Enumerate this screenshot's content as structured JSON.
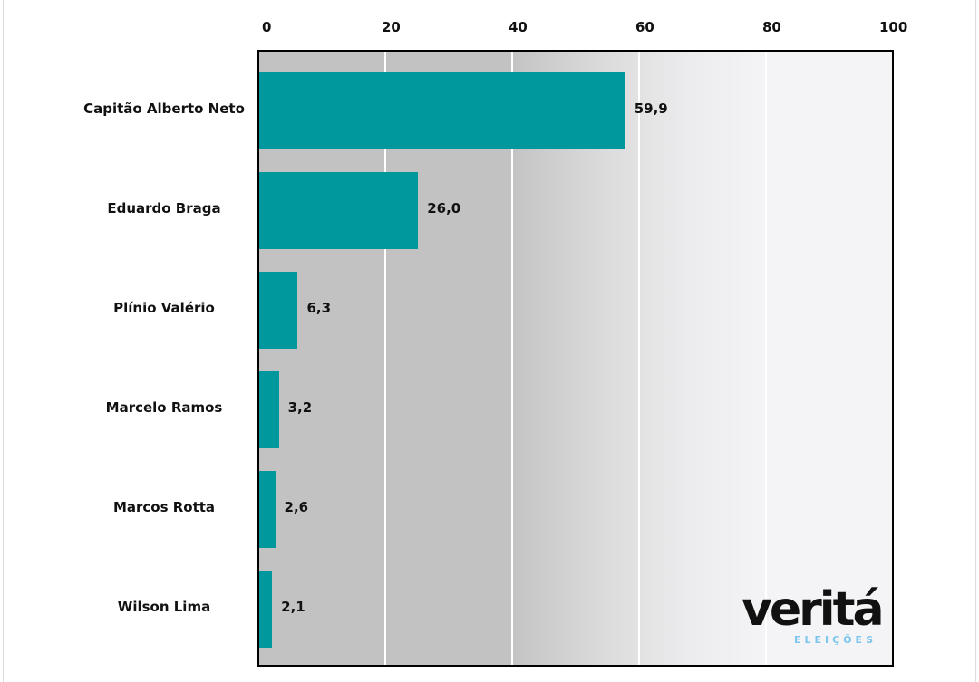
{
  "chart_data": {
    "type": "bar",
    "orientation": "horizontal",
    "categories": [
      "Capitão Alberto Neto",
      "Eduardo Braga",
      "Plínio Valério",
      "Marcelo Ramos",
      "Marcos Rotta",
      "Wilson Lima"
    ],
    "values": [
      59.9,
      26.0,
      6.3,
      3.2,
      2.6,
      2.1
    ],
    "value_labels": [
      "59,9",
      "26,0",
      "6,3",
      "3,2",
      "2,6",
      "2,1"
    ],
    "xticks": [
      "0",
      "20",
      "40",
      "60",
      "80",
      "100"
    ],
    "xlim": [
      0,
      100
    ],
    "xaxis_position": "top",
    "grid": true,
    "bar_color": "#00979d",
    "title": "",
    "xlabel": "",
    "ylabel": ""
  },
  "logo": {
    "name": "veritá",
    "sub": "ELEIÇÕES"
  }
}
